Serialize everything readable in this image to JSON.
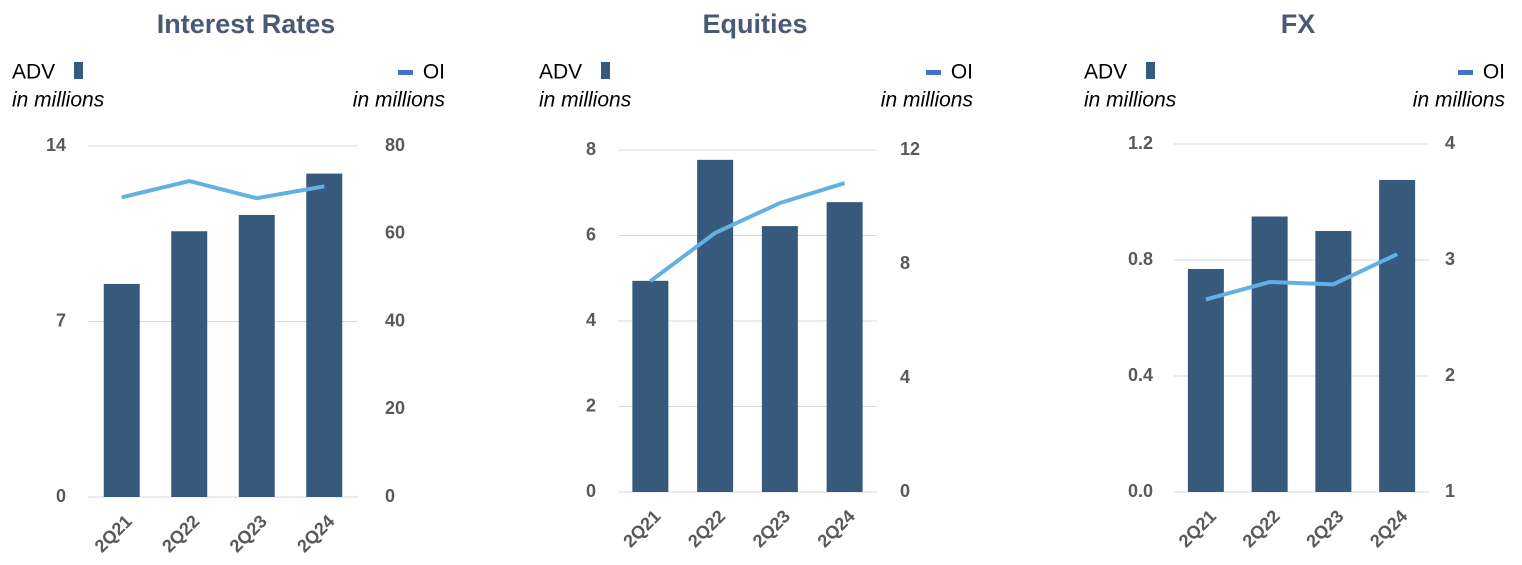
{
  "chart_data": [
    {
      "type": "bar_line",
      "title": "Interest Rates",
      "yunit": "in millions",
      "y2unit": "in millions",
      "categories": [
        "2Q21",
        "2Q22",
        "2Q23",
        "2Q24"
      ],
      "series": [
        {
          "name": "ADV",
          "color": "#36597c",
          "type": "bar",
          "values": [
            8.5,
            10.6,
            11.25,
            12.9
          ]
        },
        {
          "name": "OI",
          "color": "#63b0e2",
          "legend_color": "#4472c4",
          "type": "line",
          "axis": "y2",
          "values": [
            68.3,
            72.0,
            68.1,
            70.8
          ]
        }
      ],
      "ylim": [
        0,
        14
      ],
      "yticks": [
        0,
        7,
        14
      ],
      "y2lim": [
        0,
        80
      ],
      "y2ticks": [
        0,
        20,
        40,
        60,
        80
      ],
      "grid": true
    },
    {
      "type": "bar_line",
      "title": "Equities",
      "yunit": "in millions",
      "y2unit": "in millions",
      "categories": [
        "2Q21",
        "2Q22",
        "2Q23",
        "2Q24"
      ],
      "series": [
        {
          "name": "ADV",
          "color": "#36597c",
          "type": "bar",
          "values": [
            4.94,
            7.77,
            6.22,
            6.78
          ]
        },
        {
          "name": "OI",
          "color": "#63b0e2",
          "legend_color": "#4472c4",
          "type": "line",
          "axis": "y2",
          "values": [
            7.4,
            9.09,
            10.14,
            10.84
          ]
        }
      ],
      "ylim": [
        0,
        8
      ],
      "yticks": [
        0,
        2,
        4,
        6,
        8
      ],
      "y2lim": [
        0,
        12
      ],
      "y2ticks": [
        0,
        4,
        8,
        12
      ],
      "grid": true
    },
    {
      "type": "bar_line",
      "title": "FX",
      "yunit": "in millions",
      "y2unit": "in millions",
      "categories": [
        "2Q21",
        "2Q22",
        "2Q23",
        "2Q24"
      ],
      "series": [
        {
          "name": "ADV",
          "color": "#36597c",
          "type": "bar",
          "values": [
            0.769,
            0.95,
            0.9,
            1.076
          ]
        },
        {
          "name": "OI",
          "color": "#63b0e2",
          "legend_color": "#4472c4",
          "type": "line",
          "axis": "y2",
          "values": [
            2.66,
            2.81,
            2.79,
            3.05
          ]
        }
      ],
      "ylim": [
        0,
        1.2
      ],
      "yticks": [
        {
          "value": 0,
          "label": "0.0"
        },
        0.4,
        0.8,
        1.2
      ],
      "y2lim": [
        1,
        4
      ],
      "y2ticks": [
        1,
        2,
        3,
        4
      ],
      "grid": true
    }
  ]
}
